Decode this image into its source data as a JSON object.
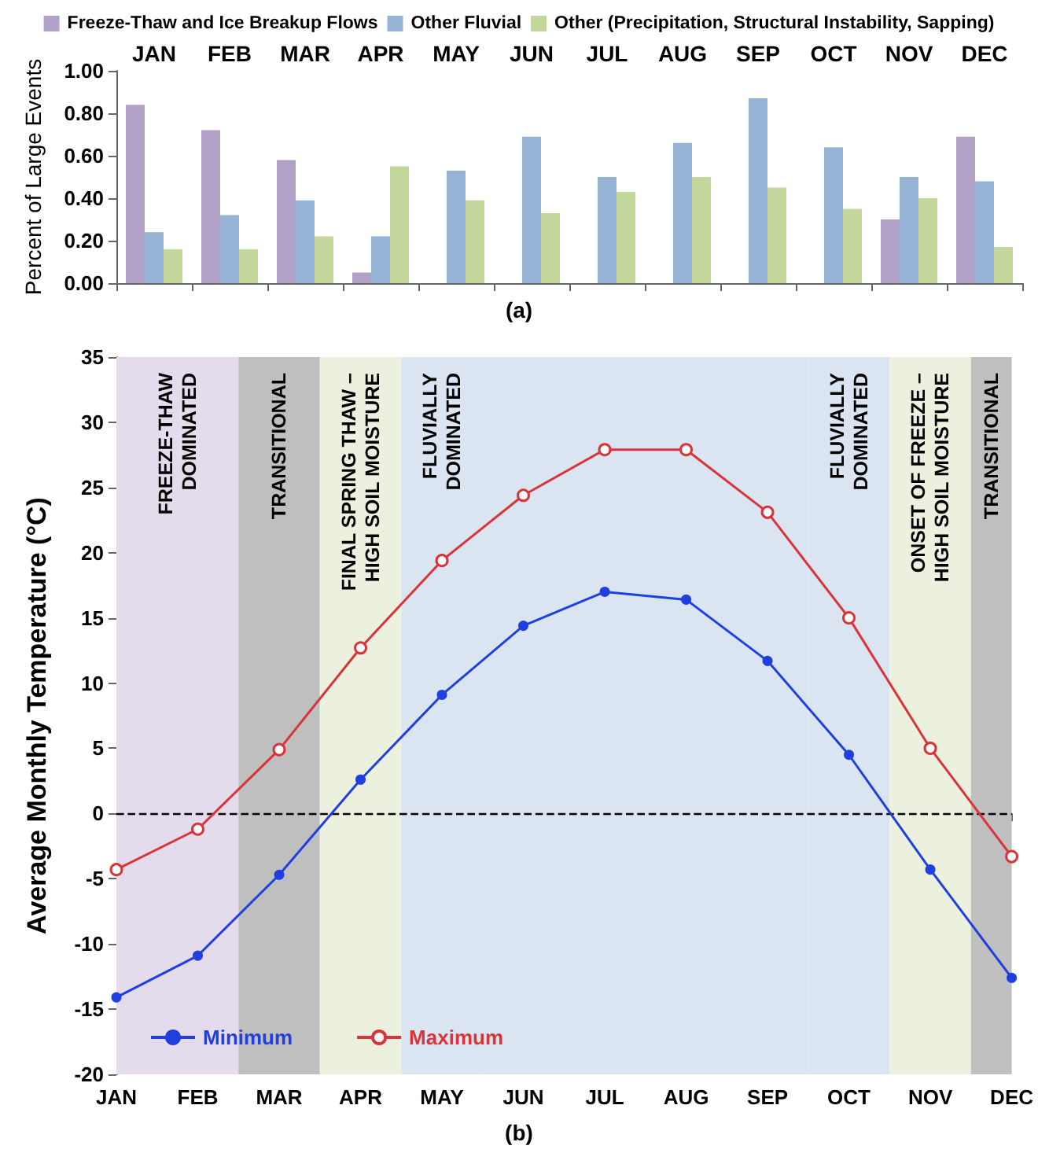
{
  "chart_data": [
    {
      "type": "bar",
      "ylabel": "Percent of Large Events",
      "annotations": [
        "(a)"
      ],
      "categories": [
        "JAN",
        "FEB",
        "MAR",
        "APR",
        "MAY",
        "JUN",
        "JUL",
        "AUG",
        "SEP",
        "OCT",
        "NOV",
        "DEC"
      ],
      "series": [
        {
          "name": "Freeze-Thaw and Ice Breakup Flows",
          "color": "#b3a2c7",
          "values": [
            0.84,
            0.72,
            0.58,
            0.05,
            0,
            0,
            0,
            0,
            0,
            0,
            0.3,
            0.69
          ]
        },
        {
          "name": "Other Fluvial",
          "color": "#95b3d7",
          "values": [
            0.24,
            0.32,
            0.39,
            0.22,
            0.53,
            0.69,
            0.5,
            0.66,
            0.87,
            0.64,
            0.5,
            0.48
          ]
        },
        {
          "name": "Other (Precipitation, Structural Instability, Sapping)",
          "color": "#c3d69b",
          "values": [
            0.16,
            0.16,
            0.22,
            0.55,
            0.39,
            0.33,
            0.43,
            0.5,
            0.45,
            0.35,
            0.4,
            0.17
          ]
        }
      ],
      "ylim": [
        0,
        1
      ],
      "yticks": [
        {
          "value": 0,
          "label": "0.00"
        },
        {
          "value": 0.2,
          "label": "0.20"
        },
        {
          "value": 0.4,
          "label": "0.40"
        },
        {
          "value": 0.6,
          "label": "0.60"
        },
        {
          "value": 0.8,
          "label": "0.80"
        },
        {
          "value": 1,
          "label": "1.00"
        }
      ],
      "legend": "top",
      "grid": false
    },
    {
      "type": "line",
      "ylabel": "Average Monthly Temperature (°C)",
      "annotations": [
        "(b)"
      ],
      "categories": [
        "JAN",
        "FEB",
        "MAR",
        "APR",
        "MAY",
        "JUN",
        "JUL",
        "AUG",
        "SEP",
        "OCT",
        "NOV",
        "DEC"
      ],
      "series": [
        {
          "name": "Minimum",
          "color": "#1f3fe0",
          "values": [
            -14.1,
            -10.9,
            -4.7,
            2.6,
            9.1,
            14.4,
            17.0,
            16.4,
            11.7,
            4.5,
            -4.3,
            -12.6
          ]
        },
        {
          "name": "Maximum",
          "color": "#d9343a",
          "values": [
            -4.3,
            -1.2,
            4.9,
            12.7,
            19.4,
            24.4,
            27.9,
            27.9,
            23.1,
            15.0,
            5.0,
            -3.3
          ]
        }
      ],
      "ylim": [
        -20,
        35
      ],
      "yticks": [
        -20,
        -15,
        -10,
        -5,
        0,
        5,
        10,
        15,
        20,
        25,
        30,
        35
      ],
      "bands": [
        {
          "axis": "x",
          "from": "JAN",
          "to": "FEB",
          "label": "FREEZE-THAW\nDOMINATED",
          "color": "#e4dcec"
        },
        {
          "axis": "x",
          "from": "MAR",
          "to": "MAR",
          "label": "TRANSITIONAL",
          "color": "#bfbfbf"
        },
        {
          "axis": "x",
          "from": "APR",
          "to": "APR",
          "label": "FINAL SPRING THAW –\nHIGH SOIL MOISTURE",
          "color": "#ebf1de"
        },
        {
          "axis": "x",
          "from": "MAY",
          "to": "MAY",
          "label": "FLUVIALLY\nDOMINATED",
          "color": "#dbe5f1"
        },
        {
          "axis": "x",
          "from": "JUN",
          "to": "SEP",
          "color": "#dbe5f1"
        },
        {
          "axis": "x",
          "from": "OCT",
          "to": "OCT",
          "label": "FLUVIALLY\nDOMINATED",
          "color": "#dbe5f1"
        },
        {
          "axis": "x",
          "from": "NOV",
          "to": "NOV",
          "label": "ONSET OF FREEZE –\nHIGH SOIL MOISTURE",
          "color": "#ebf1de"
        },
        {
          "axis": "x",
          "from": "DEC",
          "to": "DEC",
          "label": "TRANSITIONAL",
          "color": "#bfbfbf"
        }
      ],
      "ref_lines": [
        {
          "axis": "y",
          "value": 0,
          "color": "#000000",
          "line_style": "dashed"
        }
      ],
      "marker": "circle",
      "legend": "bottom left",
      "grid": false
    }
  ]
}
